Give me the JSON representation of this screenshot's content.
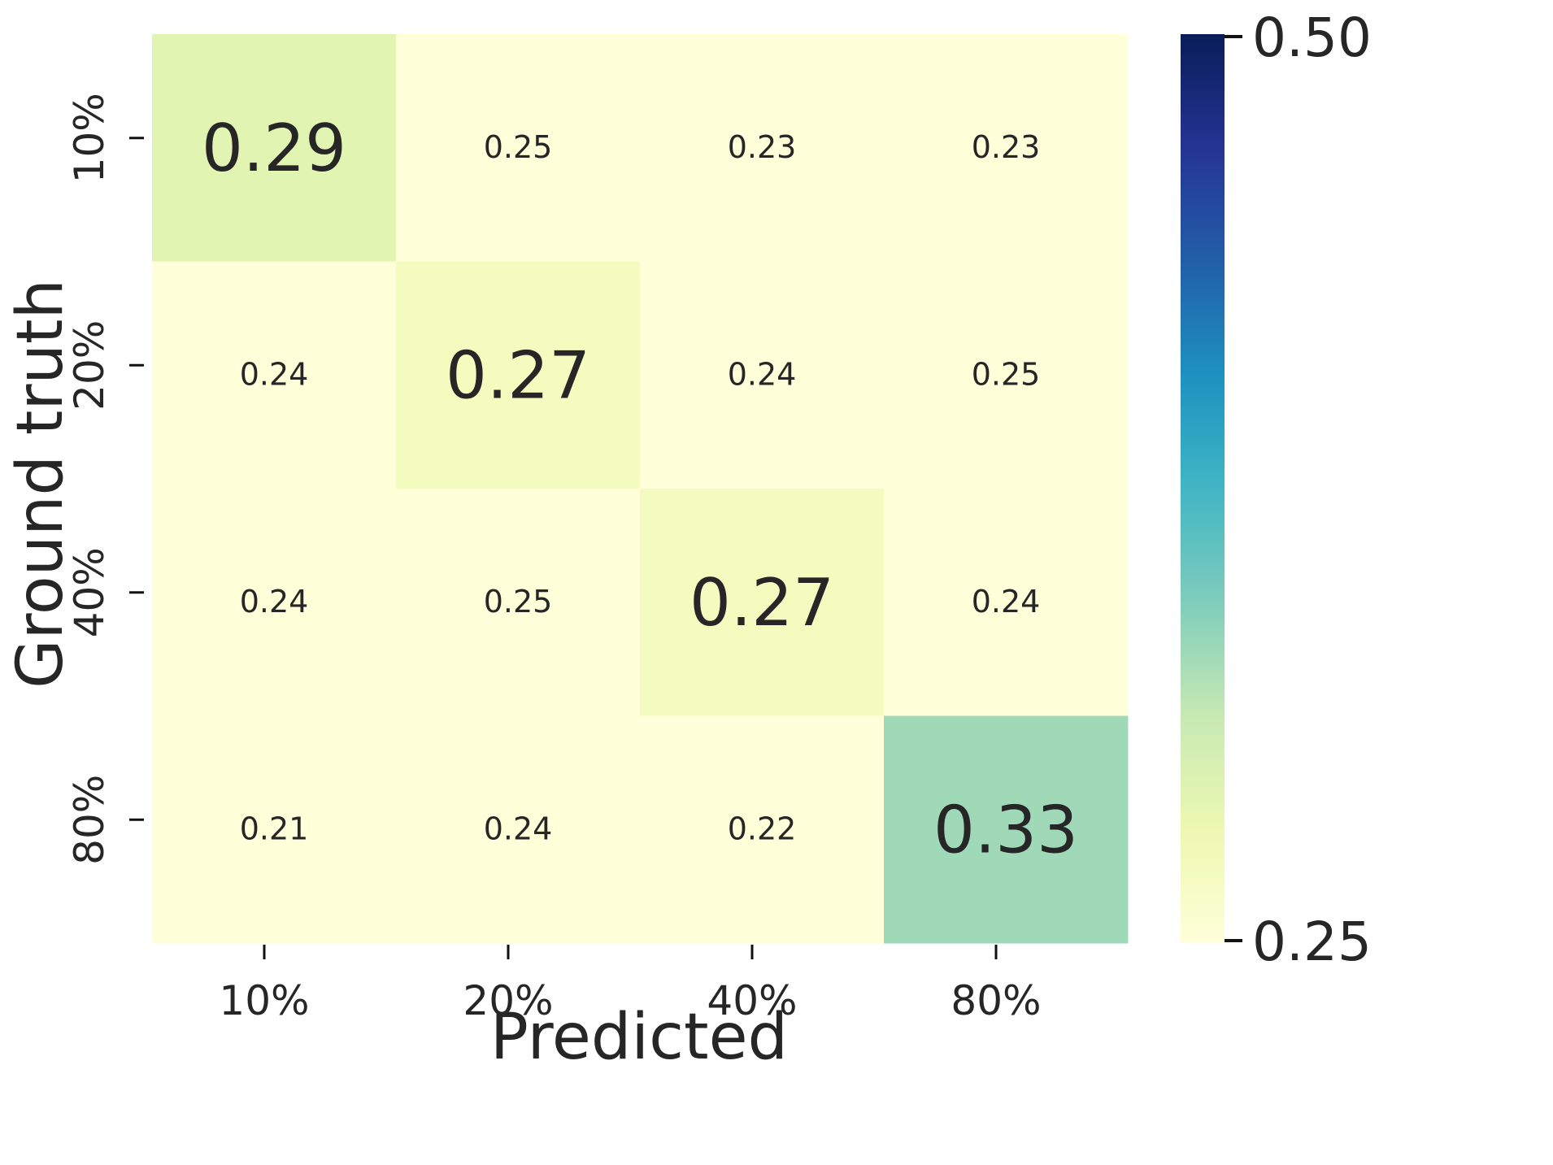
{
  "chart_data": {
    "type": "heatmap",
    "title": "",
    "xlabel": "Predicted",
    "ylabel": "Ground truth",
    "x_categories": [
      "10%",
      "20%",
      "40%",
      "80%"
    ],
    "y_categories": [
      "10%",
      "20%",
      "40%",
      "80%"
    ],
    "values": [
      [
        0.29,
        0.25,
        0.23,
        0.23
      ],
      [
        0.24,
        0.27,
        0.24,
        0.25
      ],
      [
        0.24,
        0.25,
        0.27,
        0.24
      ],
      [
        0.21,
        0.24,
        0.22,
        0.33
      ]
    ],
    "value_labels": [
      [
        "0.29",
        "0.25",
        "0.23",
        "0.23"
      ],
      [
        "0.24",
        "0.27",
        "0.24",
        "0.25"
      ],
      [
        "0.24",
        "0.25",
        "0.27",
        "0.24"
      ],
      [
        "0.21",
        "0.24",
        "0.22",
        "0.33"
      ]
    ],
    "colormap": "YlGnBu",
    "colormap_stops": [
      "#ffffd9",
      "#edf8b1",
      "#c7e9b4",
      "#7fcdbb",
      "#41b6c4",
      "#1d91c0",
      "#225ea8",
      "#253494",
      "#081d58"
    ],
    "colorbar": {
      "min": 0.25,
      "max": 0.5,
      "tick_labels": [
        "0.50",
        "0.25"
      ]
    },
    "grid": false,
    "legend": "colorbar-right",
    "emphasis": "diagonal values in larger font"
  }
}
